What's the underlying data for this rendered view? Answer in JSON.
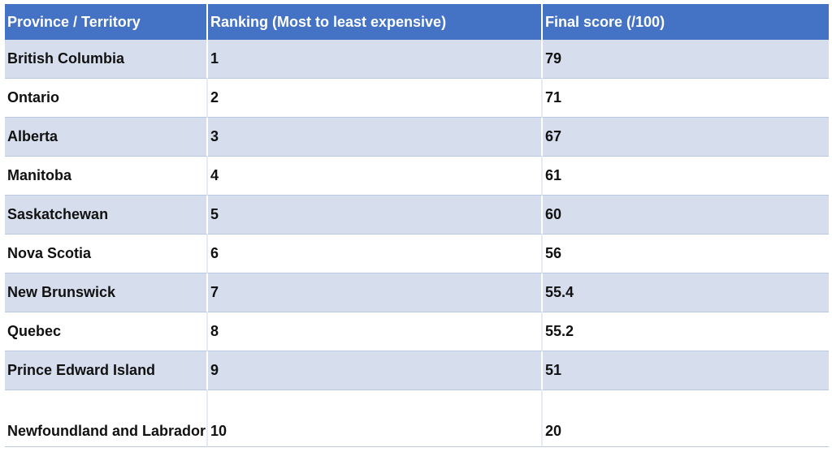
{
  "table": {
    "headers": [
      "Province / Territory",
      "Ranking (Most to least expensive)",
      "Final score (/100)"
    ],
    "rows": [
      {
        "province": "British Columbia",
        "rank": "1",
        "score": "79"
      },
      {
        "province": "Ontario",
        "rank": "2",
        "score": "71"
      },
      {
        "province": "Alberta",
        "rank": "3",
        "score": "67"
      },
      {
        "province": "Manitoba",
        "rank": "4",
        "score": "61"
      },
      {
        "province": "Saskatchewan",
        "rank": "5",
        "score": "60"
      },
      {
        "province": "Nova Scotia",
        "rank": "6",
        "score": "56"
      },
      {
        "province": "New Brunswick",
        "rank": "7",
        "score": "55.4"
      },
      {
        "province": "Quebec",
        "rank": "8",
        "score": "55.2"
      },
      {
        "province": "Prince Edward Island",
        "rank": "9",
        "score": "51"
      },
      {
        "province": "Newfoundland and Labrador",
        "rank": "10",
        "score": "20"
      }
    ]
  },
  "colors": {
    "header_bg": "#4472c4",
    "header_text": "#ffffff",
    "shaded_row_bg": "#d6deee",
    "plain_row_bg": "#ffffff"
  }
}
